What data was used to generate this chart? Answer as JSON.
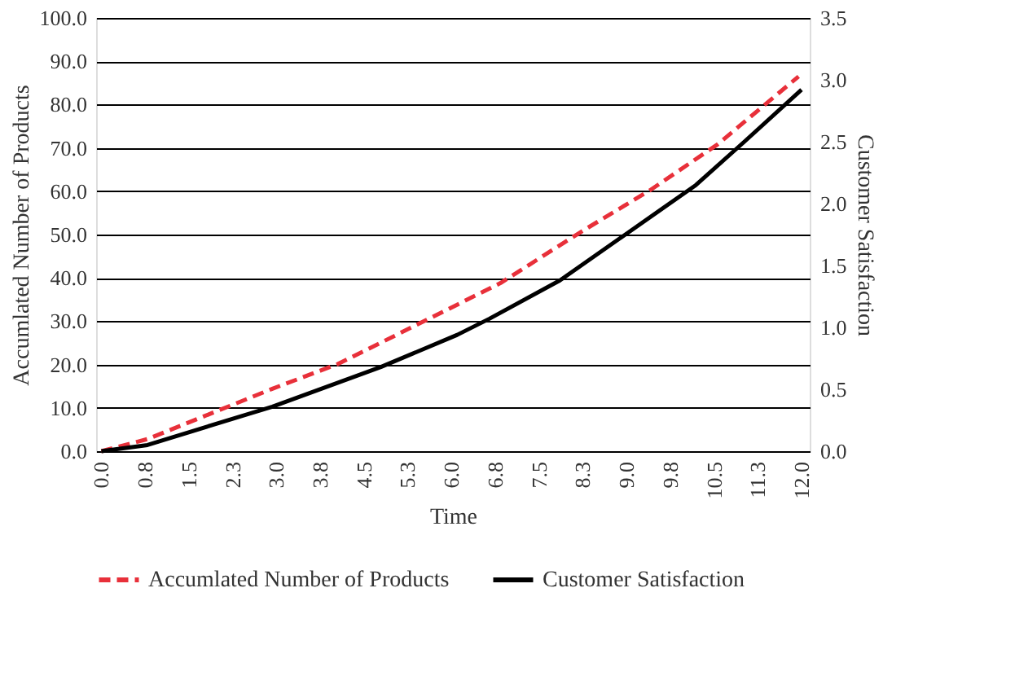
{
  "chart_data": {
    "type": "line",
    "xlabel": "Time",
    "ylabel": "Accumlated Number of Products",
    "y2label": "Customer Satisfaction",
    "series": [
      {
        "name": "Accumlated Number of Products",
        "color": "#e8303a",
        "line_style": "dashed",
        "x": [
          0,
          0.79,
          2.93,
          4.05,
          5.44,
          6.84,
          8.23,
          9.4,
          10.56,
          11.95
        ],
        "values": [
          0,
          2.8,
          14.4,
          20.1,
          29.4,
          38.8,
          50.7,
          60.2,
          70.8,
          86.5
        ]
      },
      {
        "name": "Customer Satisfaction",
        "color": "#000000",
        "line_style": "solid",
        "axis": "y2",
        "x": [
          0,
          0.79,
          2.93,
          4.79,
          6.1,
          6.65,
          7.86,
          9.07,
          10.19,
          11.02,
          12.0
        ],
        "values": [
          0,
          0.05,
          0.36,
          0.68,
          0.94,
          1.07,
          1.38,
          1.78,
          2.15,
          2.5,
          2.92
        ]
      }
    ],
    "xlim": [
      -0.09,
      12.14
    ],
    "xticks": [
      {
        "value": 0,
        "label": "0.0"
      },
      {
        "value": 0.75,
        "label": "0.8"
      },
      {
        "value": 1.5,
        "label": "1.5"
      },
      {
        "value": 2.25,
        "label": "2.3"
      },
      {
        "value": 3,
        "label": "3.0"
      },
      {
        "value": 3.75,
        "label": "3.8"
      },
      {
        "value": 4.5,
        "label": "4.5"
      },
      {
        "value": 5.25,
        "label": "5.3"
      },
      {
        "value": 6,
        "label": "6.0"
      },
      {
        "value": 6.75,
        "label": "6.8"
      },
      {
        "value": 7.5,
        "label": "7.5"
      },
      {
        "value": 8.25,
        "label": "8.3"
      },
      {
        "value": 9,
        "label": "9.0"
      },
      {
        "value": 9.75,
        "label": "9.8"
      },
      {
        "value": 10.5,
        "label": "10.5"
      },
      {
        "value": 11.25,
        "label": "11.3"
      },
      {
        "value": 12,
        "label": "12.0"
      }
    ],
    "ylim": [
      0,
      100
    ],
    "yticks": [
      {
        "value": 0,
        "label": "0.0"
      },
      {
        "value": 10,
        "label": "10.0"
      },
      {
        "value": 20,
        "label": "20.0"
      },
      {
        "value": 30,
        "label": "30.0"
      },
      {
        "value": 40,
        "label": "40.0"
      },
      {
        "value": 50,
        "label": "50.0"
      },
      {
        "value": 60,
        "label": "60.0"
      },
      {
        "value": 70,
        "label": "70.0"
      },
      {
        "value": 80,
        "label": "80.0"
      },
      {
        "value": 90,
        "label": "90.0"
      },
      {
        "value": 100,
        "label": "100.0"
      }
    ],
    "y2lim": [
      0,
      3.5
    ],
    "y2ticks": [
      {
        "value": 0,
        "label": "0.0"
      },
      {
        "value": 0.5,
        "label": "0.5"
      },
      {
        "value": 1,
        "label": "1.0"
      },
      {
        "value": 1.5,
        "label": "1.5"
      },
      {
        "value": 2,
        "label": "2.0"
      },
      {
        "value": 2.5,
        "label": "2.5"
      },
      {
        "value": 3,
        "label": "3.0"
      },
      {
        "value": 3.5,
        "label": "3.5"
      }
    ],
    "grid": "y",
    "legend": "bottom",
    "marker": "none"
  }
}
